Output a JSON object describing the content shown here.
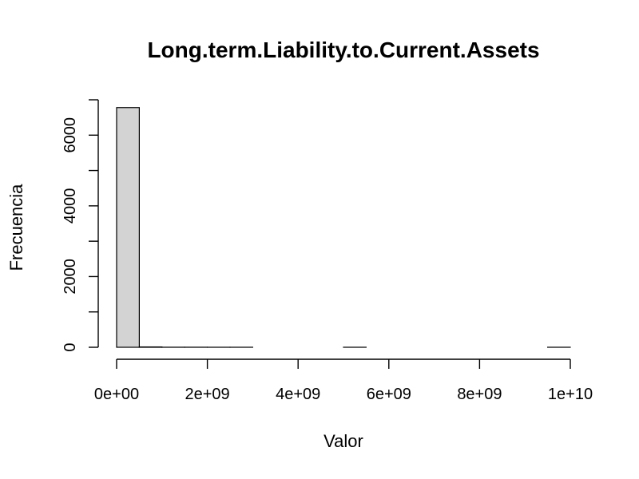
{
  "chart_data": {
    "type": "bar",
    "title": "Long.term.Liability.to.Current.Assets",
    "xlabel": "Valor",
    "ylabel": "Frecuencia",
    "bin_edges": [
      0,
      500000000,
      1000000000,
      1500000000,
      2000000000,
      2500000000,
      3000000000,
      3500000000,
      4000000000,
      4500000000,
      5000000000,
      5500000000,
      6000000000,
      6500000000,
      7000000000,
      7500000000,
      8000000000,
      8500000000,
      9000000000,
      9500000000,
      10000000000
    ],
    "values": [
      6780,
      10,
      2,
      2,
      1,
      1,
      0,
      0,
      0,
      0,
      1,
      0,
      0,
      0,
      0,
      0,
      0,
      0,
      0,
      1
    ],
    "xlim": [
      0,
      10000000000
    ],
    "ylim": [
      0,
      6800
    ],
    "x_ticks": [
      0,
      2000000000,
      4000000000,
      6000000000,
      8000000000,
      10000000000
    ],
    "x_tick_labels": [
      "0e+00",
      "2e+09",
      "4e+09",
      "6e+09",
      "8e+09",
      "1e+10"
    ],
    "y_ticks": [
      0,
      1000,
      2000,
      3000,
      4000,
      5000,
      6000,
      7000
    ],
    "y_tick_labels": [
      "0",
      "",
      "2000",
      "",
      "4000",
      "",
      "6000",
      ""
    ],
    "grid": false,
    "colors": {
      "bar_fill": "#d3d3d3",
      "bar_stroke": "#000000"
    }
  }
}
